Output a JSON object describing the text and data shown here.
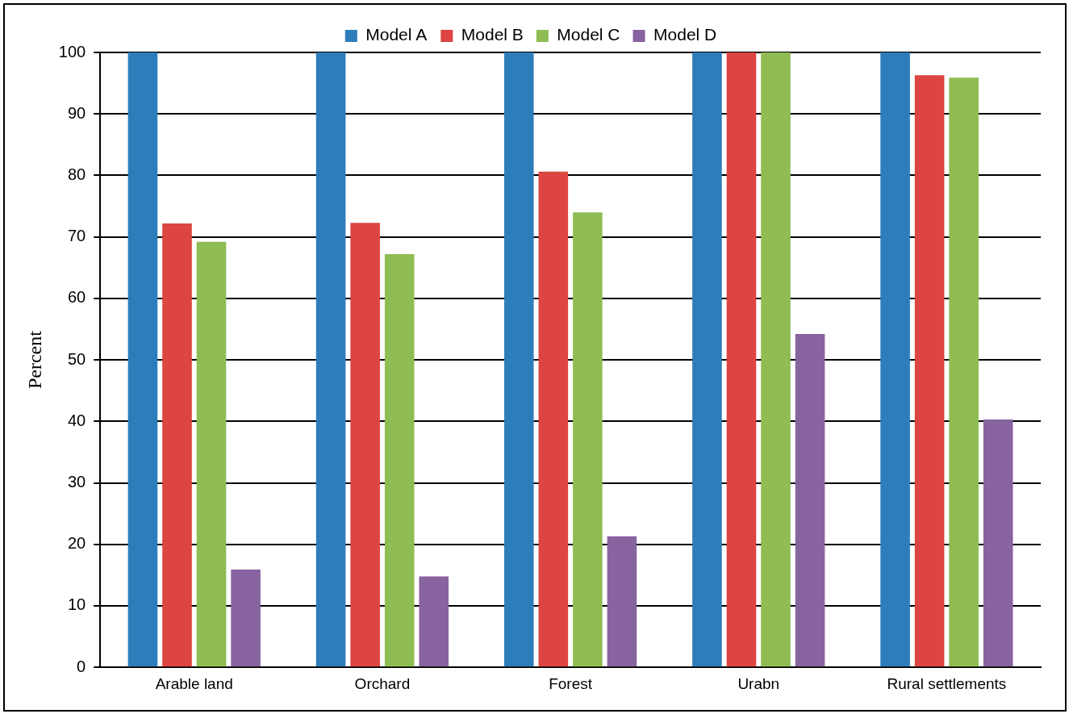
{
  "chart_data": {
    "type": "bar",
    "ylabel": "Percent",
    "categories": [
      "Arable land",
      "Orchard",
      "Forest",
      "Urabn",
      "Rural settlements"
    ],
    "series": [
      {
        "name": "Model A",
        "color": "#2e7dbb",
        "values": [
          100,
          100,
          100,
          100,
          100
        ]
      },
      {
        "name": "Model B",
        "color": "#dc4542",
        "values": [
          72.2,
          72.3,
          80.6,
          100,
          96.3
        ]
      },
      {
        "name": "Model C",
        "color": "#8fbc53",
        "values": [
          69.2,
          67.2,
          74.0,
          100,
          95.9
        ]
      },
      {
        "name": "Model D",
        "color": "#8763a0",
        "values": [
          15.9,
          14.8,
          21.3,
          54.2,
          40.3
        ]
      }
    ],
    "ylim": [
      0,
      100
    ],
    "yticks": [
      0,
      10,
      20,
      30,
      40,
      50,
      60,
      70,
      80,
      90,
      100
    ],
    "grid": "y",
    "legend": "top"
  }
}
